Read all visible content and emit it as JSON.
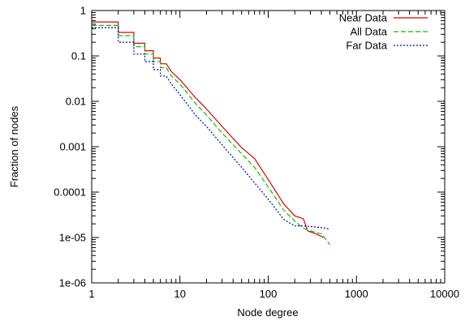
{
  "chart_data": {
    "type": "line",
    "xlabel": "Node degree",
    "ylabel": "Fraction of nodes",
    "x_scale": "log",
    "y_scale": "log",
    "xlim": [
      1,
      10000
    ],
    "ylim": [
      1e-06,
      1
    ],
    "x_ticks": [
      {
        "value": 1,
        "label": "1"
      },
      {
        "value": 10,
        "label": "10"
      },
      {
        "value": 100,
        "label": "100"
      },
      {
        "value": 1000,
        "label": "1000"
      },
      {
        "value": 10000,
        "label": "10000"
      }
    ],
    "y_ticks": [
      {
        "value": 1,
        "label": "1"
      },
      {
        "value": 0.1,
        "label": "0.1"
      },
      {
        "value": 0.01,
        "label": "0.01"
      },
      {
        "value": 0.001,
        "label": "0.001"
      },
      {
        "value": 0.0001,
        "label": "0.0001"
      },
      {
        "value": 1e-05,
        "label": "1e-05"
      },
      {
        "value": 1e-06,
        "label": "1e-06"
      }
    ],
    "grid": false,
    "legend_position": "top-right",
    "series": [
      {
        "name": "Near Data",
        "color": "#e00000",
        "dash": "solid",
        "points": [
          [
            1,
            0.56
          ],
          [
            2,
            0.56
          ],
          [
            2,
            0.33
          ],
          [
            3,
            0.33
          ],
          [
            3,
            0.19
          ],
          [
            4,
            0.19
          ],
          [
            4,
            0.13
          ],
          [
            5,
            0.13
          ],
          [
            5,
            0.09
          ],
          [
            6,
            0.09
          ],
          [
            6,
            0.067
          ],
          [
            7,
            0.067
          ],
          [
            8,
            0.045
          ],
          [
            10,
            0.03
          ],
          [
            15,
            0.012
          ],
          [
            20,
            0.0068
          ],
          [
            30,
            0.0028
          ],
          [
            50,
            0.00095
          ],
          [
            70,
            0.00055
          ],
          [
            100,
            0.00019
          ],
          [
            150,
            5.5e-05
          ],
          [
            200,
            3e-05
          ],
          [
            250,
            2.6e-05
          ],
          [
            280,
            1.4e-05
          ],
          [
            350,
            1.2e-05
          ],
          [
            420,
            1e-05
          ]
        ]
      },
      {
        "name": "All Data",
        "color": "#00c000",
        "dash": "6,3",
        "points": [
          [
            1,
            0.47
          ],
          [
            2,
            0.47
          ],
          [
            2,
            0.28
          ],
          [
            3,
            0.28
          ],
          [
            3,
            0.16
          ],
          [
            4,
            0.16
          ],
          [
            4,
            0.11
          ],
          [
            5,
            0.11
          ],
          [
            5,
            0.075
          ],
          [
            6,
            0.075
          ],
          [
            6,
            0.055
          ],
          [
            7,
            0.055
          ],
          [
            8,
            0.036
          ],
          [
            10,
            0.024
          ],
          [
            15,
            0.009
          ],
          [
            20,
            0.005
          ],
          [
            30,
            0.002
          ],
          [
            50,
            0.0007
          ],
          [
            70,
            0.00035
          ],
          [
            100,
            0.00013
          ],
          [
            150,
            4e-05
          ],
          [
            200,
            2.3e-05
          ],
          [
            250,
            1.6e-05
          ],
          [
            300,
            1.4e-05
          ],
          [
            400,
            1.2e-05
          ],
          [
            500,
            7e-06
          ]
        ]
      },
      {
        "name": "Far Data",
        "color": "#0000c0",
        "dash": "2,2",
        "points": [
          [
            1,
            0.42
          ],
          [
            2,
            0.42
          ],
          [
            2,
            0.2
          ],
          [
            3,
            0.2
          ],
          [
            3,
            0.11
          ],
          [
            4,
            0.11
          ],
          [
            4,
            0.075
          ],
          [
            5,
            0.075
          ],
          [
            5,
            0.05
          ],
          [
            6,
            0.05
          ],
          [
            6,
            0.036
          ],
          [
            7,
            0.036
          ],
          [
            8,
            0.024
          ],
          [
            10,
            0.014
          ],
          [
            15,
            0.005
          ],
          [
            20,
            0.0028
          ],
          [
            30,
            0.0011
          ],
          [
            50,
            0.00035
          ],
          [
            70,
            0.00016
          ],
          [
            100,
            7e-05
          ],
          [
            150,
            2.5e-05
          ],
          [
            200,
            1.8e-05
          ],
          [
            250,
            1.8e-05
          ],
          [
            350,
            1.7e-05
          ],
          [
            450,
            1.6e-05
          ],
          [
            500,
            1.5e-05
          ]
        ]
      }
    ]
  }
}
